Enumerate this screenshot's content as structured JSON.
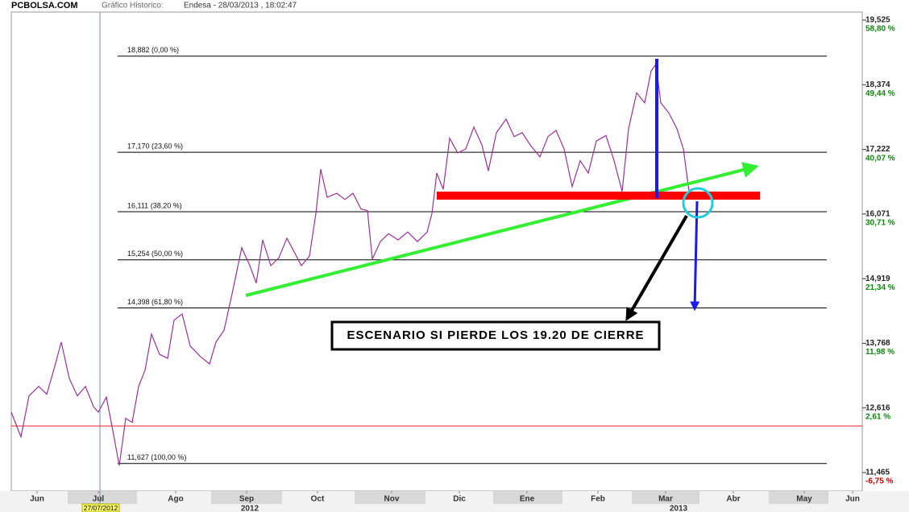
{
  "chart_data": {
    "type": "line",
    "source": "PCBOLSA.COM",
    "chart_label": "Gráfico Historico:",
    "title": "Endesa - 28/03/2013 , 18:02:47",
    "annotation": "ESCENARIO SI PIERDE LOS 19.20 DE CIERRE",
    "xlim": [
      0,
      264
    ],
    "xticks": [
      {
        "value": 8,
        "label": "Jun"
      },
      {
        "value": 27,
        "label": "Jul"
      },
      {
        "value": 51,
        "label": "Ago"
      },
      {
        "value": 73,
        "label": "Sep"
      },
      {
        "value": 95,
        "label": "Oct"
      },
      {
        "value": 118,
        "label": "Nov"
      },
      {
        "value": 139,
        "label": "Dic"
      },
      {
        "value": 160,
        "label": "Ene"
      },
      {
        "value": 182,
        "label": "Feb"
      },
      {
        "value": 203,
        "label": "Mar"
      },
      {
        "value": 224,
        "label": "Abr"
      },
      {
        "value": 246,
        "label": "May"
      },
      {
        "value": 261,
        "label": "Jun"
      }
    ],
    "years": [
      {
        "value": 74,
        "label": "2012"
      },
      {
        "value": 207,
        "label": "2013"
      }
    ],
    "cursor": {
      "x": 27.5,
      "label": "27/07/2012"
    },
    "ylim": [
      11.135,
      19.668
    ],
    "yticks": [
      {
        "value": 19.525,
        "label": "19,525"
      },
      {
        "value": 18.374,
        "label": "18,374"
      },
      {
        "value": 17.222,
        "label": "17,222"
      },
      {
        "value": 16.071,
        "label": "16,071"
      },
      {
        "value": 14.919,
        "label": "14,919"
      },
      {
        "value": 13.768,
        "label": "13,768"
      },
      {
        "value": 12.616,
        "label": "12,616"
      },
      {
        "value": 11.465,
        "label": "11,465"
      }
    ],
    "y2lim": [
      -9.43,
      59.97
    ],
    "y2ticks": [
      {
        "value": 58.8,
        "label": "58,80 %"
      },
      {
        "value": 49.44,
        "label": "49,44 %"
      },
      {
        "value": 40.07,
        "label": "40,07 %"
      },
      {
        "value": 30.71,
        "label": "30,71 %"
      },
      {
        "value": 21.34,
        "label": "21,34 %"
      },
      {
        "value": 11.98,
        "label": "11,98 %"
      },
      {
        "value": 2.61,
        "label": "2,61 %"
      },
      {
        "value": -6.75,
        "label": "-6,75 %"
      }
    ],
    "baseline": 12.295,
    "levels": [
      {
        "value": 18.882,
        "label": "18,882 (0,00 %)"
      },
      {
        "value": 17.17,
        "label": "17,170 (23,60 %)"
      },
      {
        "value": 16.111,
        "label": "16,111 (38,20 %)"
      },
      {
        "value": 15.254,
        "label": "15,254 (50,00 %)"
      },
      {
        "value": 14.398,
        "label": "14,398 (61,80 %)"
      },
      {
        "value": 11.627,
        "label": "11,627 (100,00 %)"
      }
    ],
    "color": "#993399",
    "x": [
      0,
      3,
      5.5,
      8.5,
      11,
      13.5,
      15.5,
      18,
      20.5,
      23,
      25.5,
      27,
      29.5,
      31.5,
      33.5,
      35.5,
      37.5,
      39.5,
      41.5,
      43.5,
      46,
      48.5,
      50.5,
      53,
      55.5,
      58.5,
      61.5,
      63.5,
      66,
      68.5,
      71.5,
      74,
      76,
      78,
      80.5,
      83,
      85.5,
      88,
      90,
      92.5,
      94.5,
      96,
      98,
      101,
      103.5,
      106,
      108.5,
      110.5,
      112,
      114.5,
      117,
      120,
      123,
      126,
      129,
      130.5,
      132,
      134,
      136,
      138.5,
      141,
      143.5,
      146,
      148,
      150.5,
      153.5,
      156,
      158.5,
      161,
      164,
      166.5,
      169,
      171.5,
      174,
      176.5,
      179,
      181.5,
      184.5,
      187,
      189.5,
      191.5,
      194,
      196.5,
      198.5,
      200,
      201.5,
      204,
      206.5,
      208.5,
      210.5
    ],
    "values": [
      12.54,
      12.1,
      12.83,
      13.0,
      12.86,
      13.36,
      13.79,
      13.14,
      12.83,
      13.0,
      12.64,
      12.54,
      12.81,
      12.21,
      11.59,
      12.43,
      12.36,
      13.0,
      13.29,
      13.93,
      13.57,
      13.5,
      14.18,
      14.29,
      13.72,
      13.54,
      13.4,
      13.79,
      14.0,
      14.65,
      15.47,
      15.15,
      14.84,
      15.61,
      15.15,
      15.29,
      15.64,
      15.37,
      15.15,
      15.32,
      16.08,
      16.87,
      16.37,
      16.44,
      16.33,
      16.44,
      16.16,
      16.13,
      15.27,
      15.58,
      15.72,
      15.61,
      15.75,
      15.58,
      15.75,
      16.08,
      16.8,
      16.51,
      17.42,
      17.16,
      17.23,
      17.62,
      17.3,
      16.84,
      17.52,
      17.76,
      17.45,
      17.52,
      17.3,
      17.09,
      17.45,
      17.56,
      17.23,
      16.56,
      17.02,
      16.8,
      17.37,
      17.47,
      17.02,
      16.47,
      17.59,
      18.23,
      18.05,
      18.62,
      18.74,
      18.05,
      17.87,
      17.59,
      17.23,
      16.37
    ]
  }
}
